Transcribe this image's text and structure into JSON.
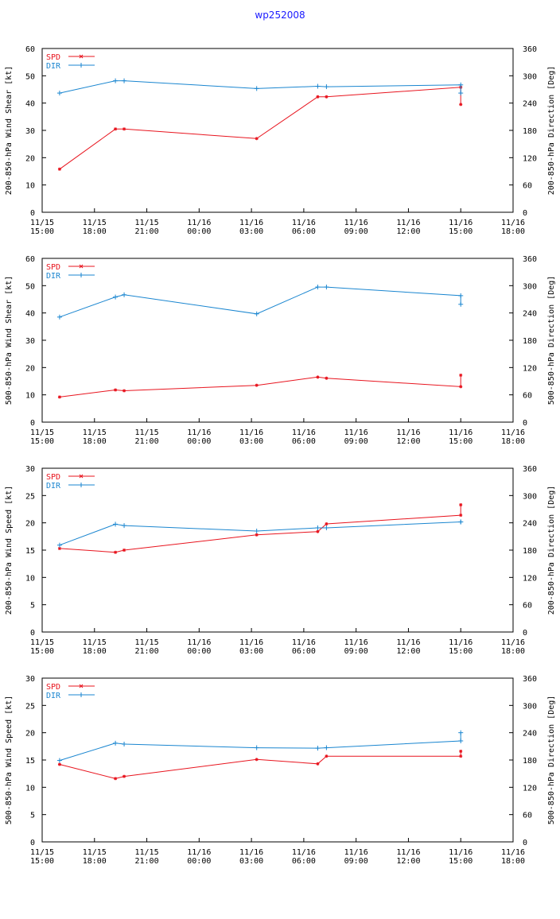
{
  "page": {
    "title": "wp252008"
  },
  "colors": {
    "spd": "#e8141e",
    "dir": "#1a86d0",
    "axis": "#000000",
    "title": "#1a1aff"
  },
  "x_tick_labels": [
    [
      "11/15",
      "15:00"
    ],
    [
      "11/15",
      "18:00"
    ],
    [
      "11/15",
      "21:00"
    ],
    [
      "11/16",
      "00:00"
    ],
    [
      "11/16",
      "03:00"
    ],
    [
      "11/16",
      "06:00"
    ],
    [
      "11/16",
      "09:00"
    ],
    [
      "11/16",
      "12:00"
    ],
    [
      "11/16",
      "15:00"
    ],
    [
      "11/16",
      "18:00"
    ]
  ],
  "chart_data": [
    {
      "type": "line",
      "ylabel": "200-850-hPa Wind Shear [kt]",
      "y2label": "200-850-hPa Direction [Deg]",
      "ylim": [
        0,
        60
      ],
      "y_ticks": [
        "0",
        "10",
        "20",
        "30",
        "40",
        "50",
        "60"
      ],
      "y2lim": [
        0,
        360
      ],
      "y2_ticks": [
        "0",
        "60",
        "120",
        "180",
        "240",
        "300",
        "360"
      ],
      "x_hours": [
        1.0,
        4.2,
        4.7,
        12.3,
        15.8,
        16.3,
        24.0,
        24.0
      ],
      "legend": [
        "SPD",
        "DIR"
      ],
      "series": [
        {
          "name": "SPD",
          "axis": "left",
          "values": [
            15.8,
            30.5,
            30.5,
            27.0,
            42.3,
            42.3,
            45.8,
            39.5
          ]
        },
        {
          "name": "DIR",
          "axis": "right",
          "values": [
            262,
            289,
            289,
            272,
            277,
            276,
            280,
            262
          ]
        }
      ]
    },
    {
      "type": "line",
      "ylabel": "500-850-hPa Wind Shear [kt]",
      "y2label": "500-850-hPa Direction [Deg]",
      "ylim": [
        0,
        60
      ],
      "y_ticks": [
        "0",
        "10",
        "20",
        "30",
        "40",
        "50",
        "60"
      ],
      "y2lim": [
        0,
        360
      ],
      "y2_ticks": [
        "0",
        "60",
        "120",
        "180",
        "240",
        "300",
        "360"
      ],
      "x_hours": [
        1.0,
        4.2,
        4.7,
        12.3,
        15.8,
        16.3,
        24.0,
        24.0
      ],
      "legend": [
        "SPD",
        "DIR"
      ],
      "series": [
        {
          "name": "SPD",
          "axis": "left",
          "values": [
            9.2,
            11.8,
            11.5,
            13.5,
            16.5,
            16.1,
            13.0,
            17.2
          ]
        },
        {
          "name": "DIR",
          "axis": "right",
          "values": [
            231,
            275,
            280,
            238,
            297,
            297,
            278,
            259
          ]
        }
      ]
    },
    {
      "type": "line",
      "ylabel": "200-850-hPa Wind Speed [kt]",
      "y2label": "200-850-hPa Direction [Deg]",
      "ylim": [
        0,
        30
      ],
      "y_ticks": [
        "0",
        "5",
        "10",
        "15",
        "20",
        "25",
        "30"
      ],
      "y2lim": [
        0,
        360
      ],
      "y2_ticks": [
        "0",
        "60",
        "120",
        "180",
        "240",
        "300",
        "360"
      ],
      "x_hours": [
        1.0,
        4.2,
        4.7,
        12.3,
        15.8,
        16.3,
        24.0,
        24.0
      ],
      "legend": [
        "SPD",
        "DIR"
      ],
      "series": [
        {
          "name": "SPD",
          "axis": "left",
          "values": [
            15.3,
            14.6,
            15.0,
            17.8,
            18.4,
            19.8,
            21.4,
            23.3
          ]
        },
        {
          "name": "DIR",
          "axis": "right",
          "values": [
            191,
            237,
            234,
            222,
            229,
            229,
            242,
            242
          ]
        }
      ]
    },
    {
      "type": "line",
      "ylabel": "500-850-hPa Wind Speed [kt]",
      "y2label": "500-850-hPa Direction [Deg]",
      "ylim": [
        0,
        30
      ],
      "y_ticks": [
        "0",
        "5",
        "10",
        "15",
        "20",
        "25",
        "30"
      ],
      "y2lim": [
        0,
        360
      ],
      "y2_ticks": [
        "0",
        "60",
        "120",
        "180",
        "240",
        "300",
        "360"
      ],
      "x_hours": [
        1.0,
        4.2,
        4.7,
        12.3,
        15.8,
        16.3,
        24.0,
        24.0
      ],
      "legend": [
        "SPD",
        "DIR"
      ],
      "series": [
        {
          "name": "SPD",
          "axis": "left",
          "values": [
            14.2,
            11.6,
            12.0,
            15.1,
            14.3,
            15.7,
            15.7,
            16.6
          ]
        },
        {
          "name": "DIR",
          "axis": "right",
          "values": [
            179,
            217,
            215,
            207,
            206,
            207,
            222,
            240
          ]
        }
      ]
    }
  ]
}
